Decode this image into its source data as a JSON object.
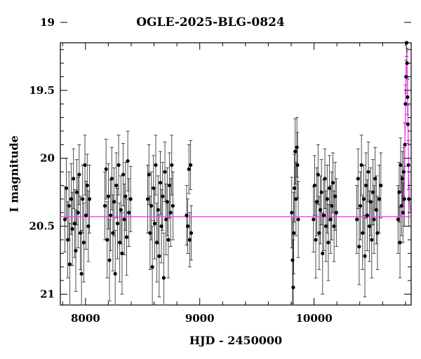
{
  "chart_data": {
    "type": "scatter",
    "title": "OGLE-2025-BLG-0824",
    "xlabel": "HJD - 2450000",
    "ylabel": "I magnitude",
    "xlim": [
      7780,
      10850
    ],
    "ylim": [
      21.08,
      19.15
    ],
    "y_inverted": true,
    "xticks": [
      8000,
      9000,
      10000
    ],
    "yticks": [
      19,
      19.5,
      20,
      20.5,
      21
    ],
    "series": [
      {
        "kind": "points_with_errorbars",
        "color": "#000000",
        "points": [
          [
            7820,
            20.45,
            0.24
          ],
          [
            7832,
            20.22,
            0.22
          ],
          [
            7845,
            20.6,
            0.28
          ],
          [
            7855,
            20.35,
            0.25
          ],
          [
            7862,
            20.78,
            0.3
          ],
          [
            7875,
            20.3,
            0.26
          ],
          [
            7885,
            20.52,
            0.27
          ],
          [
            7895,
            20.15,
            0.22
          ],
          [
            7905,
            20.48,
            0.25
          ],
          [
            7915,
            20.68,
            0.3
          ],
          [
            7925,
            20.25,
            0.24
          ],
          [
            7935,
            20.4,
            0.26
          ],
          [
            7945,
            20.12,
            0.22
          ],
          [
            7955,
            20.55,
            0.27
          ],
          [
            7965,
            20.85,
            0.32
          ],
          [
            7975,
            20.3,
            0.25
          ],
          [
            7985,
            20.62,
            0.29
          ],
          [
            7995,
            20.05,
            0.22
          ],
          [
            8005,
            20.42,
            0.25
          ],
          [
            8015,
            20.2,
            0.23
          ],
          [
            8025,
            20.5,
            0.26
          ],
          [
            8035,
            20.3,
            0.25
          ],
          [
            8170,
            20.35,
            0.25
          ],
          [
            8180,
            20.08,
            0.22
          ],
          [
            8190,
            20.6,
            0.28
          ],
          [
            8200,
            20.28,
            0.24
          ],
          [
            8210,
            20.75,
            0.3
          ],
          [
            8220,
            20.42,
            0.26
          ],
          [
            8230,
            20.15,
            0.23
          ],
          [
            8240,
            20.55,
            0.28
          ],
          [
            8250,
            20.32,
            0.25
          ],
          [
            8260,
            20.85,
            0.32
          ],
          [
            8270,
            20.2,
            0.24
          ],
          [
            8280,
            20.48,
            0.26
          ],
          [
            8290,
            20.05,
            0.22
          ],
          [
            8300,
            20.62,
            0.29
          ],
          [
            8310,
            20.38,
            0.25
          ],
          [
            8320,
            20.7,
            0.3
          ],
          [
            8330,
            20.12,
            0.23
          ],
          [
            8340,
            20.45,
            0.26
          ],
          [
            8350,
            20.28,
            0.25
          ],
          [
            8360,
            20.58,
            0.28
          ],
          [
            8370,
            20.02,
            0.22
          ],
          [
            8380,
            20.4,
            0.25
          ],
          [
            8395,
            20.3,
            0.24
          ],
          [
            8545,
            20.3,
            0.25
          ],
          [
            8555,
            20.12,
            0.22
          ],
          [
            8565,
            20.55,
            0.27
          ],
          [
            8575,
            20.35,
            0.25
          ],
          [
            8585,
            20.8,
            0.3
          ],
          [
            8595,
            20.22,
            0.24
          ],
          [
            8605,
            20.48,
            0.26
          ],
          [
            8615,
            20.05,
            0.22
          ],
          [
            8625,
            20.62,
            0.29
          ],
          [
            8635,
            20.38,
            0.25
          ],
          [
            8645,
            20.72,
            0.3
          ],
          [
            8655,
            20.18,
            0.23
          ],
          [
            8665,
            20.5,
            0.27
          ],
          [
            8675,
            20.28,
            0.25
          ],
          [
            8685,
            20.88,
            0.33
          ],
          [
            8695,
            20.1,
            0.22
          ],
          [
            8705,
            20.45,
            0.26
          ],
          [
            8715,
            20.32,
            0.25
          ],
          [
            8725,
            20.6,
            0.28
          ],
          [
            8735,
            20.2,
            0.24
          ],
          [
            8745,
            20.4,
            0.25
          ],
          [
            8755,
            20.05,
            0.22
          ],
          [
            8765,
            20.35,
            0.25
          ],
          [
            8885,
            20.42,
            0.22
          ],
          [
            8895,
            20.5,
            0.2
          ],
          [
            8905,
            20.08,
            0.18
          ],
          [
            8912,
            20.6,
            0.2
          ],
          [
            8920,
            20.05,
            0.18
          ],
          [
            8925,
            20.55,
            0.2
          ],
          [
            9805,
            20.4,
            0.26
          ],
          [
            9812,
            20.75,
            0.32
          ],
          [
            9818,
            20.95,
            0.35
          ],
          [
            9822,
            20.55,
            0.3
          ],
          [
            9828,
            20.22,
            0.25
          ],
          [
            9835,
            19.95,
            0.24
          ],
          [
            9842,
            20.3,
            0.27
          ],
          [
            9850,
            19.92,
            0.22
          ],
          [
            9855,
            20.05,
            0.24
          ],
          [
            9862,
            20.45,
            0.28
          ],
          [
            9995,
            20.45,
            0.24
          ],
          [
            10005,
            20.2,
            0.22
          ],
          [
            10015,
            20.6,
            0.28
          ],
          [
            10025,
            20.32,
            0.25
          ],
          [
            10035,
            20.12,
            0.22
          ],
          [
            10045,
            20.55,
            0.27
          ],
          [
            10055,
            20.38,
            0.25
          ],
          [
            10065,
            20.25,
            0.24
          ],
          [
            10075,
            20.7,
            0.3
          ],
          [
            10085,
            20.42,
            0.26
          ],
          [
            10095,
            20.15,
            0.22
          ],
          [
            10105,
            20.5,
            0.26
          ],
          [
            10115,
            20.3,
            0.25
          ],
          [
            10125,
            20.62,
            0.28
          ],
          [
            10135,
            20.22,
            0.24
          ],
          [
            10145,
            20.45,
            0.25
          ],
          [
            10155,
            20.35,
            0.25
          ],
          [
            10165,
            20.18,
            0.22
          ],
          [
            10175,
            20.5,
            0.26
          ],
          [
            10185,
            20.28,
            0.25
          ],
          [
            10195,
            20.4,
            0.25
          ],
          [
            10375,
            20.45,
            0.25
          ],
          [
            10385,
            20.15,
            0.22
          ],
          [
            10395,
            20.65,
            0.28
          ],
          [
            10405,
            20.35,
            0.25
          ],
          [
            10415,
            20.05,
            0.22
          ],
          [
            10425,
            20.55,
            0.27
          ],
          [
            10435,
            20.3,
            0.25
          ],
          [
            10445,
            20.72,
            0.3
          ],
          [
            10455,
            20.2,
            0.24
          ],
          [
            10465,
            20.42,
            0.26
          ],
          [
            10475,
            20.1,
            0.22
          ],
          [
            10485,
            20.5,
            0.26
          ],
          [
            10495,
            20.32,
            0.25
          ],
          [
            10505,
            20.6,
            0.28
          ],
          [
            10515,
            20.25,
            0.24
          ],
          [
            10525,
            20.45,
            0.25
          ],
          [
            10535,
            20.15,
            0.23
          ],
          [
            10545,
            20.38,
            0.25
          ],
          [
            10555,
            20.55,
            0.27
          ],
          [
            10570,
            20.3,
            0.25
          ],
          [
            10585,
            20.2,
            0.24
          ],
          [
            10735,
            20.45,
            0.25
          ],
          [
            10745,
            20.25,
            0.22
          ],
          [
            10752,
            20.62,
            0.26
          ],
          [
            10758,
            20.05,
            0.2
          ],
          [
            10765,
            20.35,
            0.22
          ],
          [
            10772,
            20.15,
            0.2
          ],
          [
            10778,
            20.4,
            0.22
          ],
          [
            10784,
            20.1,
            0.18
          ],
          [
            10790,
            20.3,
            0.2
          ],
          [
            10795,
            19.9,
            0.16
          ],
          [
            10800,
            19.6,
            0.14
          ],
          [
            10805,
            19.4,
            0.12
          ],
          [
            10810,
            19.15,
            0.1
          ],
          [
            10814,
            19.3,
            0.11
          ],
          [
            10818,
            19.55,
            0.13
          ],
          [
            10822,
            19.75,
            0.14
          ],
          [
            10826,
            20.05,
            0.18
          ],
          [
            10830,
            20.3,
            0.2
          ]
        ]
      }
    ],
    "baseline": {
      "value": 20.43,
      "color": "#ff33ff"
    },
    "model_curve": {
      "color": "#ff33ff",
      "points": [
        [
          10720,
          20.43
        ],
        [
          10760,
          20.42
        ],
        [
          10780,
          20.38
        ],
        [
          10790,
          20.2
        ],
        [
          10796,
          19.9
        ],
        [
          10801,
          19.6
        ],
        [
          10806,
          19.35
        ],
        [
          10810,
          19.22
        ],
        [
          10814,
          19.3
        ],
        [
          10818,
          19.5
        ],
        [
          10823,
          19.8
        ],
        [
          10828,
          20.1
        ],
        [
          10834,
          20.3
        ],
        [
          10845,
          20.4
        ]
      ]
    },
    "grid": false,
    "legend": "none"
  }
}
